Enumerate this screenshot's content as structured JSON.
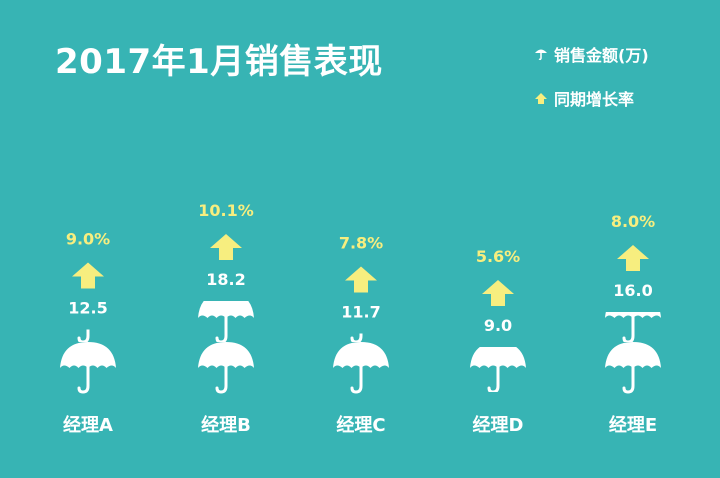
{
  "chart_data": {
    "type": "bar",
    "title": "2017年1月销售表现",
    "categories": [
      "经理A",
      "经理B",
      "经理C",
      "经理D",
      "经理E"
    ],
    "series": [
      {
        "name": "销售金额(万)",
        "values": [
          12.5,
          18.2,
          11.7,
          9.0,
          16.0
        ],
        "labels": [
          "12.5",
          "18.2",
          "11.7",
          "9.0",
          "16.0"
        ]
      },
      {
        "name": "同期增长率",
        "values": [
          9.0,
          10.1,
          7.8,
          5.6,
          8.0
        ],
        "labels": [
          "9.0%",
          "10.1%",
          "7.8%",
          "5.6%",
          "8.0%"
        ]
      }
    ],
    "legend_position": "top-right",
    "colors": {
      "background": "#37b4b4",
      "umbrella": "#ffffff",
      "arrow": "#f7ee7f"
    },
    "icons": {
      "sales": "umbrella-icon",
      "growth": "up-arrow-icon"
    }
  }
}
